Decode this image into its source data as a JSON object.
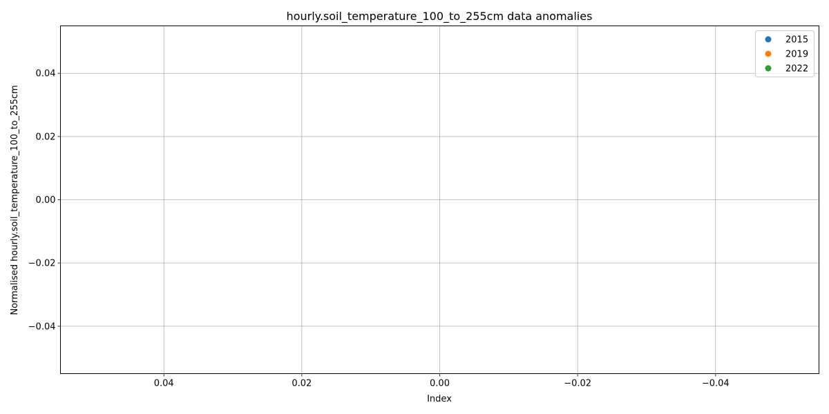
{
  "chart_data": {
    "type": "scatter",
    "title": "hourly.soil_temperature_100_to_255cm data anomalies",
    "xlabel": "Index",
    "ylabel": "Normalised hourly.soil_temperature_100_to_255cm",
    "xlim": [
      0.055,
      -0.055
    ],
    "ylim": [
      -0.055,
      0.055
    ],
    "x_ticks": [
      0.04,
      0.02,
      0.0,
      -0.02,
      -0.04
    ],
    "x_tick_labels": [
      "0.04",
      "0.02",
      "0.00",
      "−0.02",
      "−0.04"
    ],
    "y_ticks": [
      0.04,
      0.02,
      0.0,
      -0.02,
      -0.04
    ],
    "y_tick_labels": [
      "0.04",
      "0.02",
      "0.00",
      "−0.02",
      "−0.04"
    ],
    "grid": true,
    "legend_position": "top-right",
    "series": [
      {
        "name": "2015",
        "color": "#1f77b4",
        "points": []
      },
      {
        "name": "2019",
        "color": "#ff7f0e",
        "points": []
      },
      {
        "name": "2022",
        "color": "#2ca02c",
        "points": []
      }
    ]
  }
}
